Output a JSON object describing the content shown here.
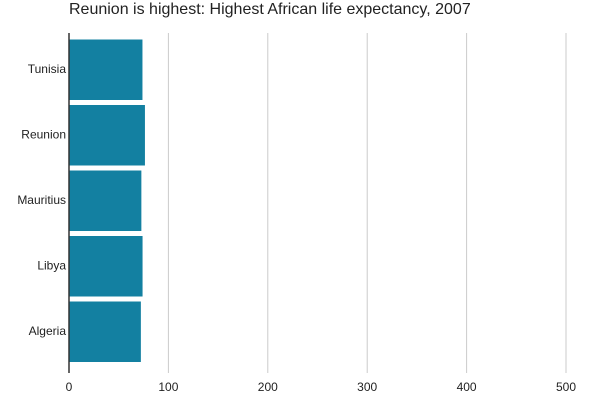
{
  "chart_data": {
    "type": "bar",
    "orientation": "horizontal",
    "title": "Reunion is highest: Highest African life expectancy, 2007",
    "xlabel": "",
    "ylabel": "",
    "categories": [
      "Tunisia",
      "Reunion",
      "Mauritius",
      "Libya",
      "Algeria"
    ],
    "values": [
      73.9,
      76.4,
      72.8,
      74.0,
      72.3
    ],
    "xlim": [
      0,
      500
    ],
    "x_ticks": [
      0,
      100,
      200,
      300,
      400,
      500
    ],
    "grid": true,
    "legend": "none",
    "bar_color": "#1380A1",
    "grid_color": "#cbcbcb",
    "axis_color": "#333333",
    "text_color": "#222222"
  }
}
